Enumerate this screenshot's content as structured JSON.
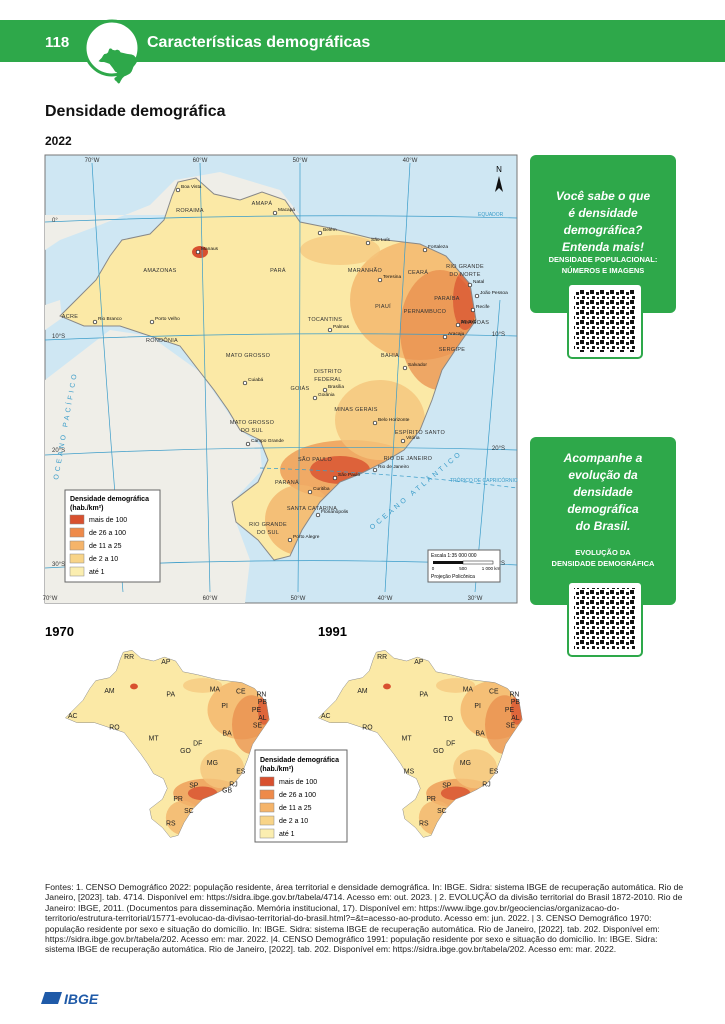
{
  "header": {
    "page_number": "118",
    "title": "Características demográficas"
  },
  "section_title": "Densidade demográfica",
  "main_map": {
    "year": "2022",
    "legend": {
      "title": "Densidade demográfica",
      "unit": "(hab./km²)",
      "items": [
        "mais de 100",
        "de 26 a 100",
        "de 11 a 25",
        "de 2 a 10",
        "até 1"
      ]
    },
    "longitude_labels": [
      "70°W",
      "60°W",
      "50°W",
      "40°W",
      "30°W"
    ],
    "latitude_labels": [
      "0°",
      "10°S",
      "20°S",
      "30°S"
    ],
    "equator": "EQUADOR",
    "tropic": "TRÓPICO DE CAPRICÓRNIO",
    "north": "N",
    "atlantic": "OCEANO ATLÂNTICO",
    "pacific": "OCEANO PACÍFICO",
    "scale": {
      "title": "Escala 1:35 000 000",
      "ticks": [
        "0",
        "500",
        "1 000 km"
      ],
      "projection": "Projeção Policônica"
    },
    "states": [
      "RORAIMA",
      "AMAPÁ",
      "AMAZONAS",
      "PARÁ",
      "MARANHÃO",
      "CEARÁ",
      "RIO GRANDE",
      "DO NORTE",
      "PARAÍBA",
      "PERNAMBUCO",
      "ALAGOAS",
      "SERGIPE",
      "PIAUÍ",
      "BAHIA",
      "TOCANTINS",
      "ACRE",
      "RONDÔNIA",
      "MATO GROSSO",
      "DISTRITO",
      "FEDERAL",
      "GOIÁS",
      "MINAS GERAIS",
      "ESPÍRITO SANTO",
      "MATO GROSSO",
      "DO SUL",
      "RIO DE JANEIRO",
      "SÃO PAULO",
      "PARANÁ",
      "SANTA CATARINA",
      "RIO GRANDE",
      "DO SUL"
    ],
    "cities": [
      "Boa Vista",
      "Macapá",
      "Manaus",
      "Belém",
      "São Luís",
      "Fortaleza",
      "Teresina",
      "Natal",
      "João Pessoa",
      "Recife",
      "Maceió",
      "Aracaju",
      "Salvador",
      "Palmas",
      "Porto Velho",
      "Rio Branco",
      "Cuiabá",
      "Brasília",
      "Goiânia",
      "Belo Horizonte",
      "Vitória",
      "Campo Grande",
      "São Paulo",
      "Rio de Janeiro",
      "Curitiba",
      "Florianópolis",
      "Porto Alegre"
    ]
  },
  "cards": [
    {
      "text": [
        "Você sabe o que",
        "é densidade",
        "demográfica?",
        "Entenda mais!"
      ],
      "link": [
        "DENSIDADE POPULACIONAL:",
        "NÚMEROS E IMAGENS"
      ]
    },
    {
      "text": [
        "Acompanhe a",
        "evolução da",
        "densidade",
        "demográfica",
        "do Brasil."
      ],
      "link": [
        "EVOLUÇÃO DA",
        "DENSIDADE DEMOGRÁFICA"
      ]
    }
  ],
  "map_1970": {
    "year": "1970",
    "labels": [
      "RR",
      "AP",
      "AM",
      "PA",
      "MA",
      "CE",
      "RN",
      "PB",
      "PE",
      "AL",
      "SE",
      "PI",
      "BA",
      "AC",
      "RO",
      "MT",
      "GO",
      "DF",
      "MG",
      "ES",
      "RJ",
      "GB",
      "SP",
      "PR",
      "SC",
      "RS"
    ]
  },
  "map_1991": {
    "year": "1991",
    "labels": [
      "RR",
      "AP",
      "AM",
      "PA",
      "MA",
      "CE",
      "RN",
      "PB",
      "PE",
      "AL",
      "SE",
      "PI",
      "BA",
      "TO",
      "AC",
      "RO",
      "MT",
      "GO",
      "DF",
      "MS",
      "MG",
      "ES",
      "RJ",
      "SP",
      "PR",
      "SC",
      "RS"
    ]
  },
  "small_legend": {
    "title": "Densidade demográfica",
    "unit": "(hab./km²)",
    "items": [
      "mais de 100",
      "de 26 a 100",
      "de 11 a 25",
      "de 2 a 10",
      "até 1"
    ]
  },
  "sources": "Fontes: 1. CENSO Demográfico 2022: população residente, área territorial e densidade demográfica. In: IBGE. Sidra: sistema IBGE de recuperação automática. Rio de Janeiro, [2023]. tab. 4714. Disponível em: https://sidra.ibge.gov.br/tabela/4714. Acesso em: out. 2023. | 2. EVOLUÇÃO da divisão territorial do Brasil 1872-2010. Rio de Janeiro: IBGE, 2011. (Documentos para disseminação. Memória institucional, 17). Disponível em: https://www.ibge.gov.br/geociencias/organizacao-do-territorio/estrutura-territorial/15771-evolucao-da-divisao-territorial-do-brasil.html?=&t=acesso-ao-produto. Acesso em: jun. 2022. | 3. CENSO Demográfico 1970: população residente por sexo e situação do domicílio. In: IBGE. Sidra: sistema IBGE de recuperação automática. Rio de Janeiro, [2022]. tab. 202. Disponível em: https://sidra.ibge.gov.br/tabela/202. Acesso em: mar. 2022. |4. CENSO Demográfico 1991: população residente por sexo e situação do domicílio. In: IBGE. Sidra: sistema IBGE de recuperação automática. Rio de Janeiro, [2022]. tab. 202. Disponível em: https://sidra.ibge.gov.br/tabela/202. Acesso em: mar. 2022.",
  "footer_logo": "IBGE"
}
